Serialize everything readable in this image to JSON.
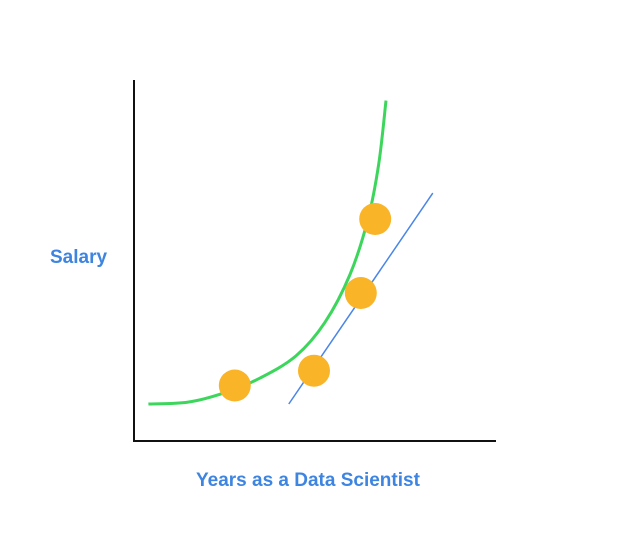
{
  "chart_data": {
    "type": "scatter",
    "title": "",
    "xlabel": "Years as a Data Scientist",
    "ylabel": "Salary",
    "grid": false,
    "legend": "none",
    "points": [
      {
        "x": 2.8,
        "y": 1.5
      },
      {
        "x": 5.0,
        "y": 1.9
      },
      {
        "x": 6.3,
        "y": 4.0
      },
      {
        "x": 6.7,
        "y": 6.0
      }
    ],
    "curve_fit": [
      {
        "x": 0.4,
        "y": 1.0
      },
      {
        "x": 1.5,
        "y": 1.05
      },
      {
        "x": 2.5,
        "y": 1.3
      },
      {
        "x": 3.5,
        "y": 1.7
      },
      {
        "x": 4.5,
        "y": 2.3
      },
      {
        "x": 5.3,
        "y": 3.2
      },
      {
        "x": 6.0,
        "y": 4.5
      },
      {
        "x": 6.5,
        "y": 6.0
      },
      {
        "x": 6.8,
        "y": 7.5
      },
      {
        "x": 7.0,
        "y": 9.2
      }
    ],
    "line_fit": [
      {
        "x": 4.3,
        "y": 1.0
      },
      {
        "x": 8.3,
        "y": 6.7
      }
    ],
    "xlim": [
      0,
      10
    ],
    "ylim": [
      0,
      10
    ],
    "colors": {
      "point": "#f9b428",
      "curve": "#3dd65c",
      "line": "#4a86e8",
      "axis": "#111111",
      "label": "#3d85e0"
    }
  }
}
